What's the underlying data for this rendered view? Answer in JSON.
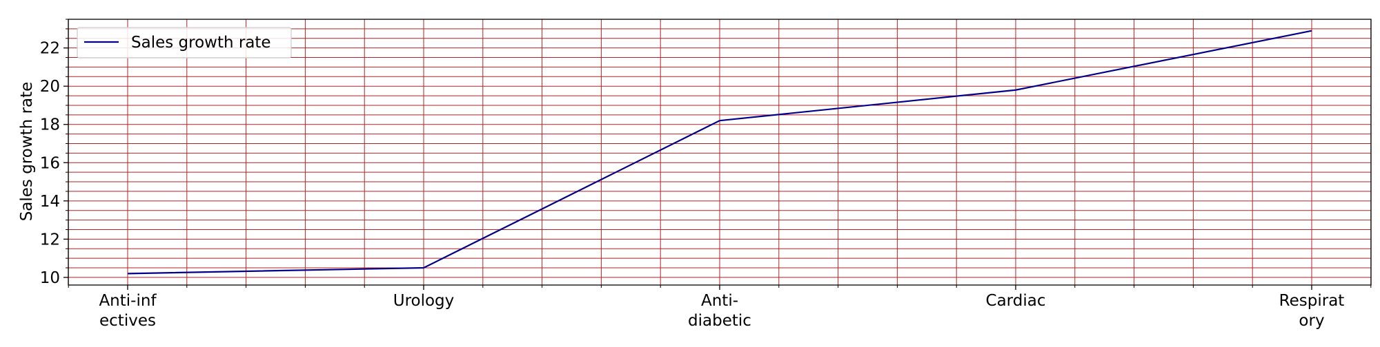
{
  "chart_data": {
    "type": "line",
    "categories": [
      "Anti-infectives",
      "Urology",
      "Anti-diabetic",
      "Cardiac",
      "Respiratory"
    ],
    "category_labels": [
      [
        "Anti-inf",
        "ectives"
      ],
      [
        "Urology"
      ],
      [
        "Anti-",
        "diabetic"
      ],
      [
        "Cardiac"
      ],
      [
        "Respirat",
        "ory"
      ]
    ],
    "series": [
      {
        "name": "Sales growth rate",
        "values": [
          10.2,
          10.5,
          18.2,
          19.8,
          22.9
        ],
        "color": "#00008b"
      }
    ],
    "title": "",
    "xlabel": "",
    "ylabel": "Sales growth rate",
    "ylim": [
      9.6,
      23.5
    ],
    "yticks": [
      10,
      12,
      14,
      16,
      18,
      20,
      22
    ],
    "y_minor_step": 0.5,
    "x_minor_per_major": 5,
    "grid": true,
    "grid_color": "#b22222",
    "legend_position": "top-left"
  }
}
